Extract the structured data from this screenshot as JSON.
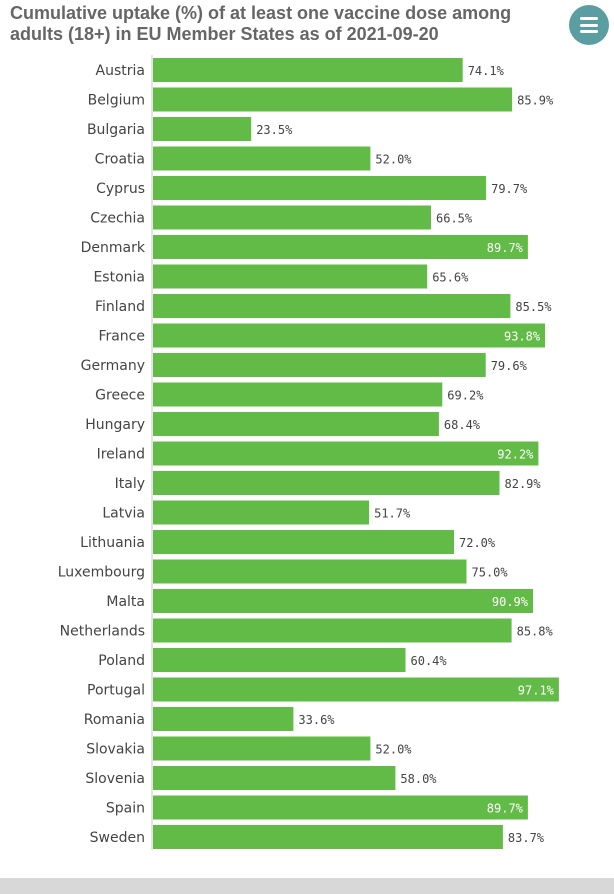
{
  "header": {
    "title": "Cumulative uptake (%) of at least one vaccine dose among adults (18+) in EU Member States as of 2021-09-20",
    "menu_icon": "hamburger-menu-icon"
  },
  "colors": {
    "bar": "#63bb47",
    "axis": "#c8c8c8",
    "label": "#444444",
    "value_outside": "#444444",
    "value_inside": "#ffffff",
    "menu_button": "#5a9ea2"
  },
  "chart_data": {
    "type": "bar",
    "orientation": "horizontal",
    "title": "Cumulative uptake (%) of at least one vaccine dose among adults (18+) in EU Member States as of 2021-09-20",
    "xlabel": "",
    "ylabel": "",
    "xlim": [
      0,
      100
    ],
    "grid": false,
    "categories": [
      "Austria",
      "Belgium",
      "Bulgaria",
      "Croatia",
      "Cyprus",
      "Czechia",
      "Denmark",
      "Estonia",
      "Finland",
      "France",
      "Germany",
      "Greece",
      "Hungary",
      "Ireland",
      "Italy",
      "Latvia",
      "Lithuania",
      "Luxembourg",
      "Malta",
      "Netherlands",
      "Poland",
      "Portugal",
      "Romania",
      "Slovakia",
      "Slovenia",
      "Spain",
      "Sweden"
    ],
    "values": [
      74.1,
      85.9,
      23.5,
      52.0,
      79.7,
      66.5,
      89.7,
      65.6,
      85.5,
      93.8,
      79.6,
      69.2,
      68.4,
      92.2,
      82.9,
      51.7,
      72.0,
      75.0,
      90.9,
      85.8,
      60.4,
      97.1,
      33.6,
      52.0,
      58.0,
      89.7,
      83.7
    ],
    "labels": [
      "74.1%",
      "85.9%",
      "23.5%",
      "52.0%",
      "79.7%",
      "66.5%",
      "89.7%",
      "65.6%",
      "85.5%",
      "93.8%",
      "79.6%",
      "69.2%",
      "68.4%",
      "92.2%",
      "82.9%",
      "51.7%",
      "72.0%",
      "75.0%",
      "90.9%",
      "85.8%",
      "60.4%",
      "97.1%",
      "33.6%",
      "52.0%",
      "58.0%",
      "89.7%",
      "83.7%"
    ]
  }
}
